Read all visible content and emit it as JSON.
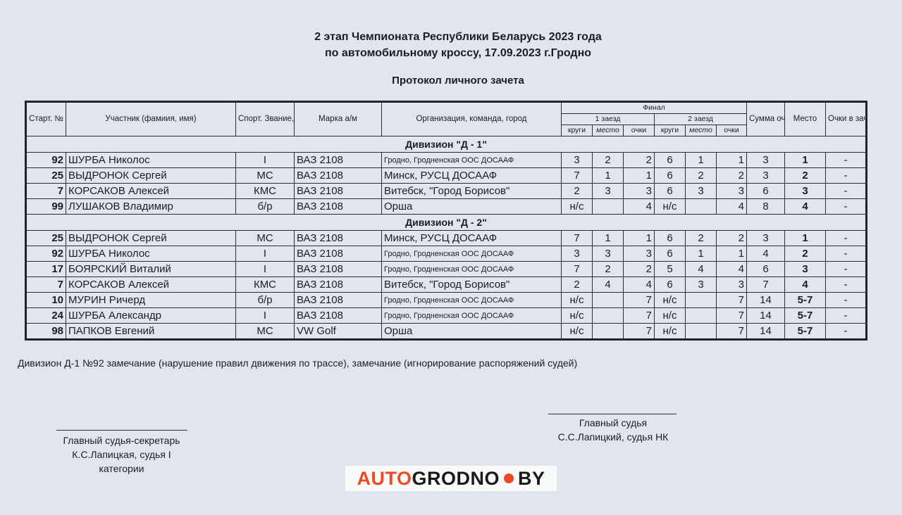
{
  "header": {
    "title_line1": "2 этап Чемпионата Республики Беларусь 2023 года",
    "title_line2": "по автомобильному кроссу, 17.09.2023 г.Гродно",
    "subtitle": "Протокол личного зачета"
  },
  "table": {
    "columns": {
      "start_no": "Старт. №",
      "participant": "Участник (фамиия, имя)",
      "rank": "Спорт. Звание, разряд",
      "car": "Марка а/м",
      "org": "Организация, команда, город",
      "final": "Финал",
      "heat1": "1 заезд",
      "heat2": "2 заезд",
      "laps": "круги",
      "position": "место",
      "points": "очки",
      "sum": "Сумма очков",
      "place": "Место",
      "credit_points": "Очки в зачет"
    },
    "divisions": [
      {
        "name": "Дивизион \"Д - 1\"",
        "rows": [
          {
            "no": "92",
            "name": "ШУРБА Николос",
            "rank": "I",
            "car": "ВАЗ 2108",
            "org": "Гродно, Гродненская ООС ДОСААФ",
            "h1": [
              "3",
              "2",
              "2"
            ],
            "h2": [
              "6",
              "1",
              "1"
            ],
            "sum": "3",
            "place": "1",
            "credit": "-"
          },
          {
            "no": "25",
            "name": "ВЫДРОНОК Сергей",
            "rank": "МС",
            "car": "ВАЗ 2108",
            "org": "Минск, РУСЦ ДОСААФ",
            "h1": [
              "7",
              "1",
              "1"
            ],
            "h2": [
              "6",
              "2",
              "2"
            ],
            "sum": "3",
            "place": "2",
            "credit": "-"
          },
          {
            "no": "7",
            "name": "КОРСАКОВ Алексей",
            "rank": "КМС",
            "car": "ВАЗ 2108",
            "org": "Витебск, \"Город Борисов\"",
            "h1": [
              "2",
              "3",
              "3"
            ],
            "h2": [
              "6",
              "3",
              "3"
            ],
            "sum": "6",
            "place": "3",
            "credit": "-"
          },
          {
            "no": "99",
            "name": "ЛУШАКОВ Владимир",
            "rank": "б/р",
            "car": "ВАЗ 2108",
            "org": "Орша",
            "h1": [
              "н/с",
              "",
              "4"
            ],
            "h2": [
              "н/с",
              "",
              "4"
            ],
            "sum": "8",
            "place": "4",
            "credit": "-"
          }
        ]
      },
      {
        "name": "Дивизион \"Д - 2\"",
        "rows": [
          {
            "no": "25",
            "name": "ВЫДРОНОК Сергей",
            "rank": "МС",
            "car": "ВАЗ 2108",
            "org": "Минск, РУСЦ ДОСААФ",
            "h1": [
              "7",
              "1",
              "1"
            ],
            "h2": [
              "6",
              "2",
              "2"
            ],
            "sum": "3",
            "place": "1",
            "credit": "-"
          },
          {
            "no": "92",
            "name": "ШУРБА Николос",
            "rank": "I",
            "car": "ВАЗ 2108",
            "org": "Гродно, Гродненская ООС ДОСААФ",
            "h1": [
              "3",
              "3",
              "3"
            ],
            "h2": [
              "6",
              "1",
              "1"
            ],
            "sum": "4",
            "place": "2",
            "credit": "-"
          },
          {
            "no": "17",
            "name": "БОЯРСКИЙ Виталий",
            "rank": "I",
            "car": "ВАЗ 2108",
            "org": "Гродно, Гродненская ООС ДОСААФ",
            "h1": [
              "7",
              "2",
              "2"
            ],
            "h2": [
              "5",
              "4",
              "4"
            ],
            "sum": "6",
            "place": "3",
            "credit": "-"
          },
          {
            "no": "7",
            "name": "КОРСАКОВ Алексей",
            "rank": "КМС",
            "car": "ВАЗ 2108",
            "org": "Витебск, \"Город Борисов\"",
            "h1": [
              "2",
              "4",
              "4"
            ],
            "h2": [
              "6",
              "3",
              "3"
            ],
            "sum": "7",
            "place": "4",
            "credit": "-"
          },
          {
            "no": "10",
            "name": "МУРИН Ричерд",
            "rank": "б/р",
            "car": "ВАЗ 2108",
            "org": "Гродно, Гродненская ООС ДОСААФ",
            "h1": [
              "н/с",
              "",
              "7"
            ],
            "h2": [
              "н/с",
              "",
              "7"
            ],
            "sum": "14",
            "place": "5-7",
            "credit": "-"
          },
          {
            "no": "24",
            "name": "ШУРБА Александр",
            "rank": "I",
            "car": "ВАЗ 2108",
            "org": "Гродно, Гродненская ООС ДОСААФ",
            "h1": [
              "н/с",
              "",
              "7"
            ],
            "h2": [
              "н/с",
              "",
              "7"
            ],
            "sum": "14",
            "place": "5-7",
            "credit": "-"
          },
          {
            "no": "98",
            "name": "ПАПКОВ Евгений",
            "rank": "МС",
            "car": "VW Golf",
            "org": "Орша",
            "h1": [
              "н/с",
              "",
              "7"
            ],
            "h2": [
              "н/с",
              "",
              "7"
            ],
            "sum": "14",
            "place": "5-7",
            "credit": "-"
          }
        ]
      }
    ]
  },
  "note": "Дивизион Д-1 №92 замечание (нарушение правил движения по трассе), замечание (игнорирование распоряжений судей)",
  "signatures": {
    "secretary": {
      "title": "Главный судья-секретарь",
      "name": "К.С.Лапицкая, судья I",
      "name_cont": "категории"
    },
    "chief": {
      "title": "Главный судья",
      "name": "С.С.Лапицкий, судья НК"
    }
  },
  "logo": {
    "part1": "AUTO",
    "part2": "GRODNO",
    "part3": "BY"
  },
  "colors": {
    "paper": "#e3e5ee",
    "logo_accent": "#ee4a24"
  }
}
